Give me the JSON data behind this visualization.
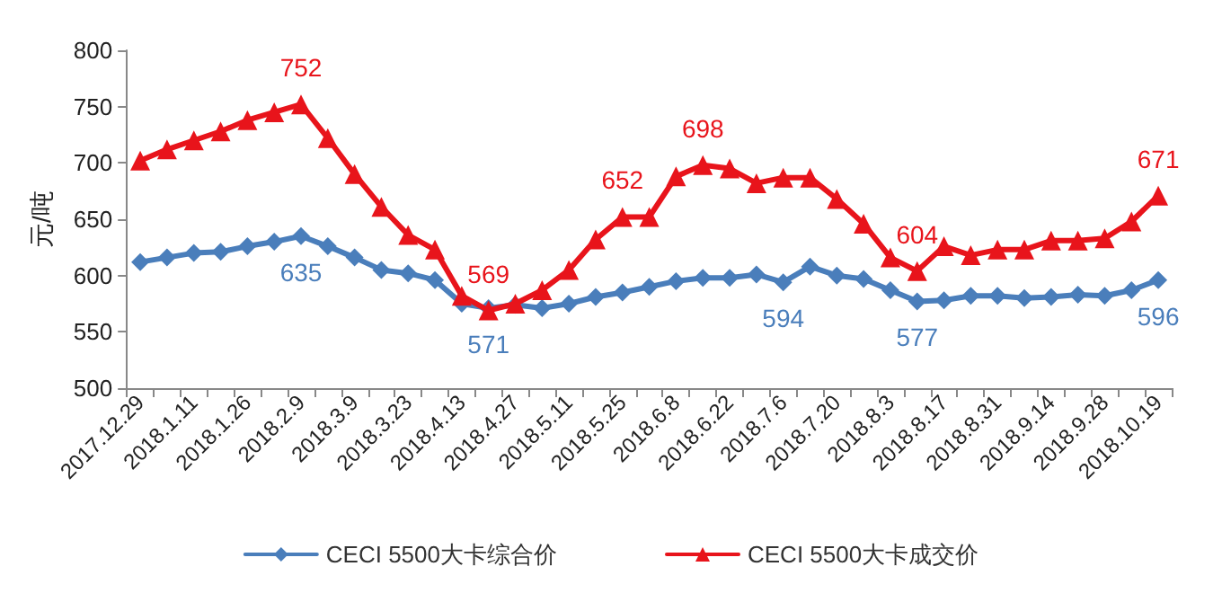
{
  "chart_data": {
    "type": "line",
    "ylabel": "元/吨",
    "categories": [
      "2017.12.29",
      null,
      "2018.1.11",
      null,
      "2018.1.26",
      null,
      "2018.2.9",
      null,
      "2018.3.9",
      null,
      "2018.3.23",
      null,
      "2018.4.13",
      null,
      "2018.4.27",
      null,
      "2018.5.11",
      null,
      "2018.5.25",
      null,
      "2018.6.8",
      null,
      "2018.6.22",
      null,
      "2018.7.6",
      null,
      "2018.7.20",
      null,
      "2018.8.3",
      null,
      "2018.8.17",
      null,
      "2018.8.31",
      null,
      "2018.9.14",
      null,
      "2018.9.28",
      null,
      "2018.10.19"
    ],
    "series": [
      {
        "name": "CECI 5500大卡综合价",
        "color": "#4a7ebb",
        "marker": "diamond",
        "values": [
          612,
          616,
          620,
          621,
          626,
          630,
          635,
          626,
          616,
          605,
          602,
          596,
          575,
          571,
          574,
          571,
          575,
          581,
          585,
          590,
          595,
          598,
          598,
          601,
          594,
          608,
          600,
          597,
          587,
          577,
          578,
          582,
          582,
          580,
          581,
          583,
          582,
          587,
          596
        ],
        "value_labels": [
          null,
          null,
          null,
          null,
          null,
          null,
          "635",
          null,
          null,
          null,
          null,
          null,
          null,
          "571",
          null,
          null,
          null,
          null,
          null,
          null,
          null,
          null,
          null,
          null,
          "594",
          null,
          null,
          null,
          null,
          "577",
          null,
          null,
          null,
          null,
          null,
          null,
          null,
          null,
          "596"
        ]
      },
      {
        "name": "CECI 5500大卡成交价",
        "color": "#e8141b",
        "marker": "triangle",
        "values": [
          702,
          712,
          720,
          728,
          738,
          745,
          752,
          722,
          690,
          661,
          636,
          623,
          582,
          569,
          575,
          587,
          605,
          632,
          652,
          652,
          688,
          698,
          695,
          682,
          687,
          687,
          668,
          646,
          616,
          604,
          626,
          618,
          623,
          623,
          631,
          631,
          633,
          648,
          671
        ],
        "value_labels": [
          null,
          null,
          null,
          null,
          null,
          null,
          "752",
          null,
          null,
          null,
          null,
          null,
          null,
          "569",
          null,
          null,
          null,
          null,
          "652",
          null,
          null,
          "698",
          null,
          null,
          null,
          null,
          null,
          null,
          null,
          "604",
          null,
          null,
          null,
          null,
          null,
          null,
          null,
          null,
          "671"
        ]
      }
    ],
    "ylim": [
      500,
      800
    ],
    "yticks": [
      500,
      550,
      600,
      650,
      700,
      750,
      800
    ],
    "grid": false,
    "legend": "bottom"
  }
}
